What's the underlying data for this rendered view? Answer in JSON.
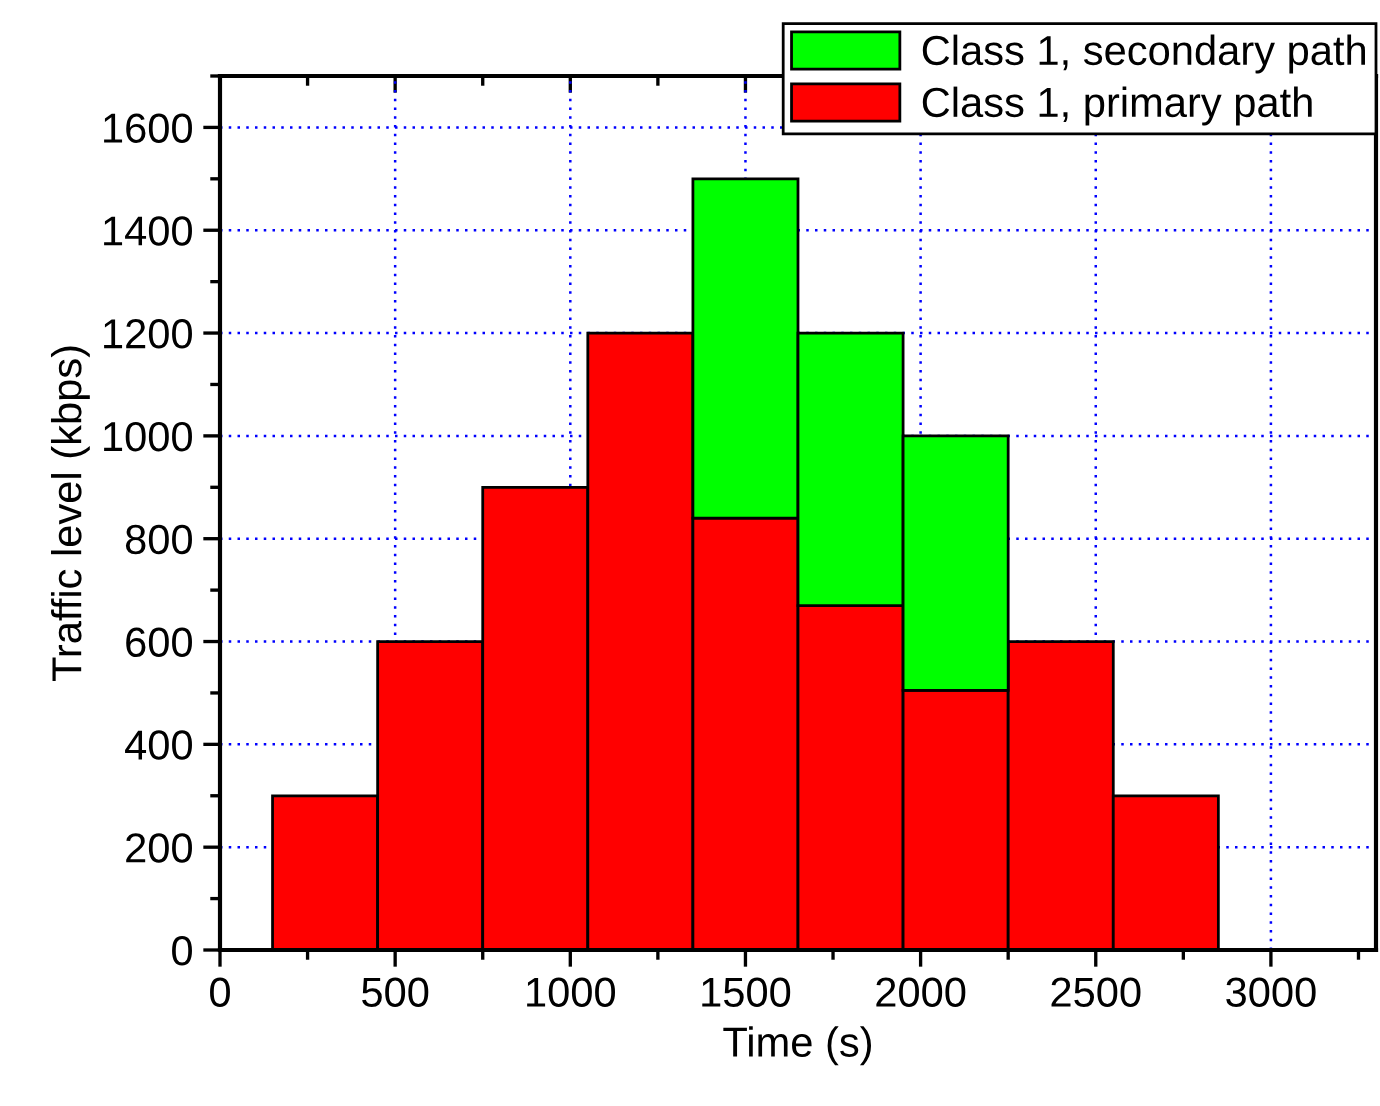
{
  "chart_data": {
    "type": "bar",
    "stacked": true,
    "xlabel": "Time (s)",
    "ylabel": "Traffic level (kbps)",
    "x": [
      300,
      600,
      900,
      1200,
      1500,
      1800,
      2100,
      2400,
      2700
    ],
    "series": [
      {
        "name": "Class 1, primary path",
        "color": "#ff0000",
        "values": [
          300,
          600,
          900,
          1200,
          840,
          670,
          505,
          600,
          300
        ]
      },
      {
        "name": "Class 1, secondary path",
        "color": "#00ff00",
        "values": [
          null,
          null,
          null,
          null,
          660,
          530,
          495,
          null,
          null
        ]
      }
    ],
    "xlim": [
      0,
      3300
    ],
    "xticks": [
      0,
      500,
      1000,
      1500,
      2000,
      2500,
      3000
    ],
    "ylim": [
      0,
      1700
    ],
    "yticks": [
      0,
      200,
      400,
      600,
      800,
      1000,
      1200,
      1400,
      1600
    ],
    "grid": true,
    "legend": "top right"
  }
}
